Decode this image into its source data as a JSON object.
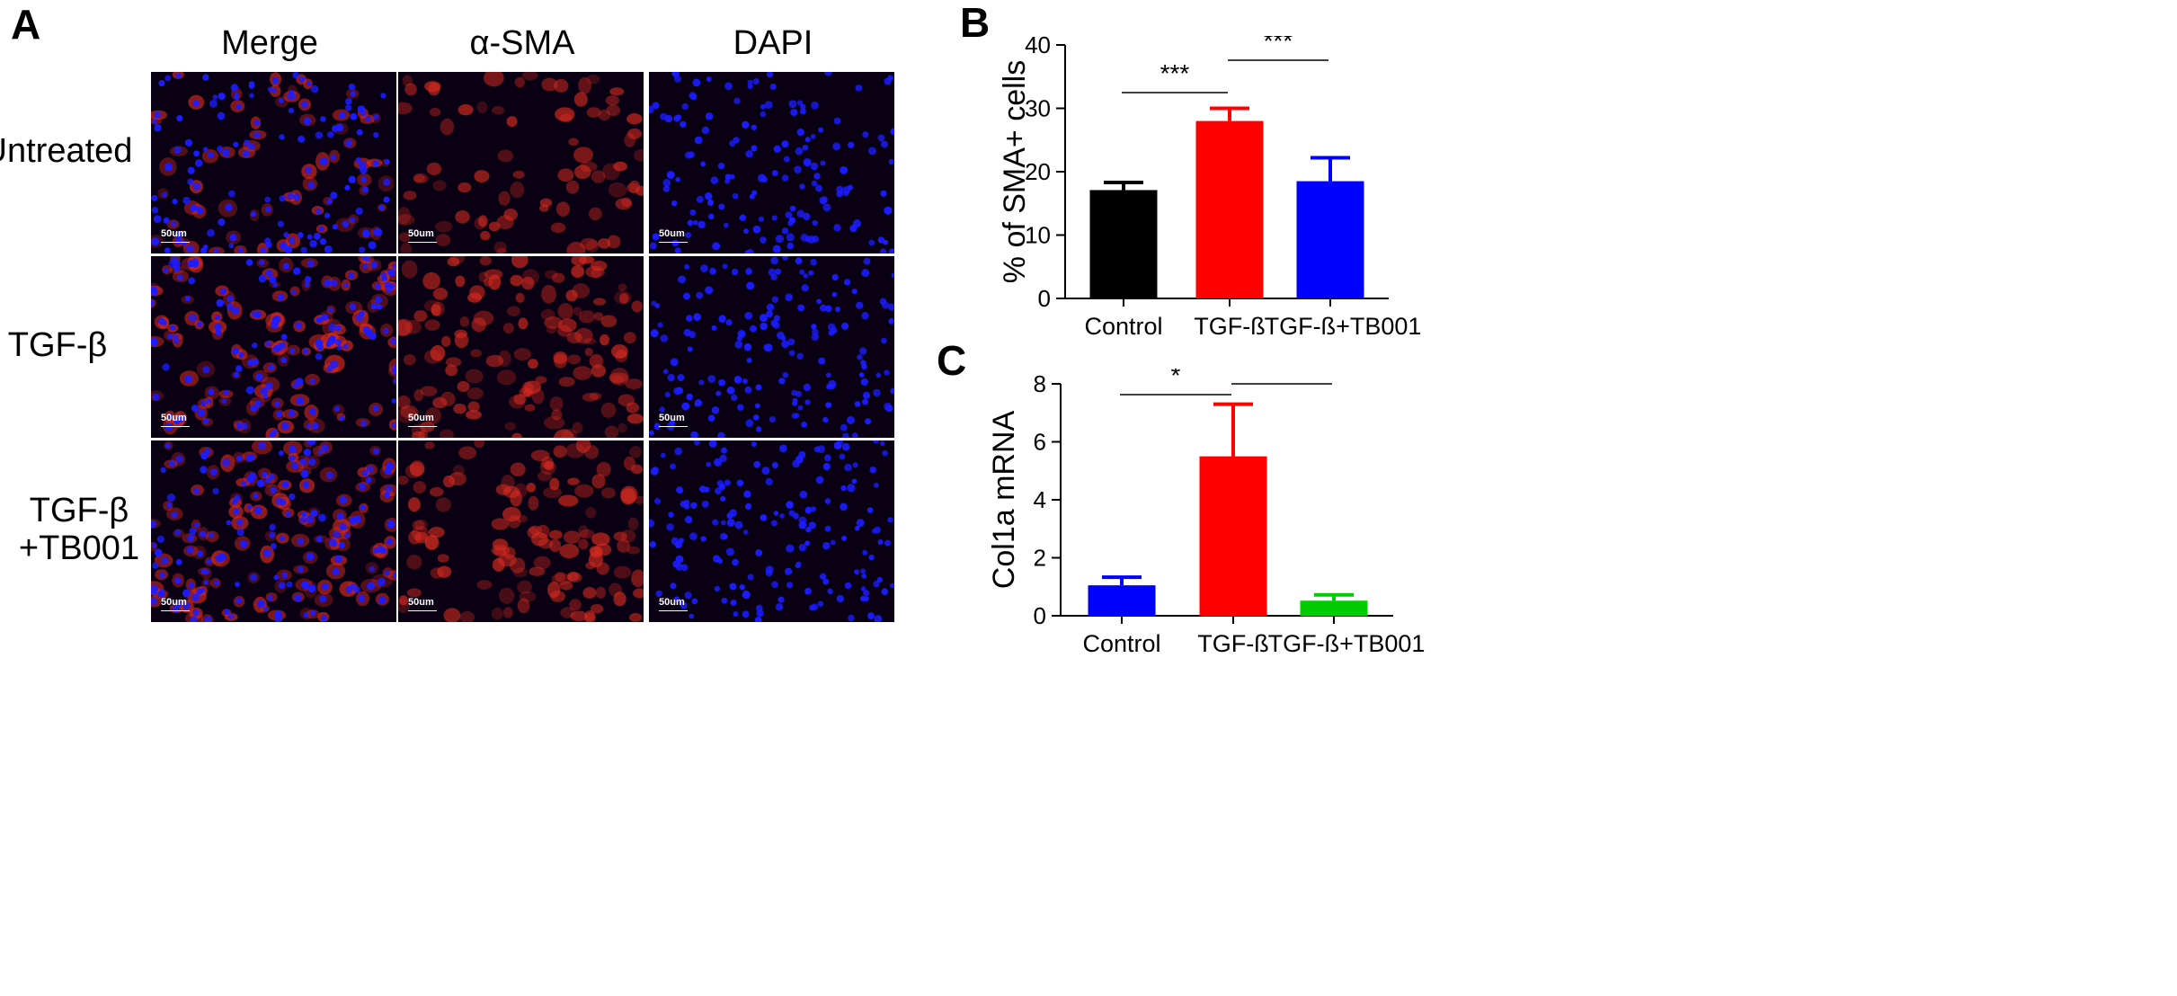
{
  "panels": {
    "a_label": "A",
    "b_label": "B",
    "c_label": "C"
  },
  "microscopy": {
    "columns": [
      "Merge",
      "α-SMA",
      "DAPI"
    ],
    "rows": [
      "Untreated",
      "TGF-β",
      "TGF-β\n+TB001"
    ],
    "scale_bar": "50um",
    "colors": {
      "alpha_sma": "#d42a1e",
      "dapi": "#1c1cff",
      "background": "#090014"
    }
  },
  "chart_data": [
    {
      "type": "bar",
      "panel": "B",
      "categories": [
        "Control",
        "TGF-ß",
        "TGF-ß+TB001"
      ],
      "values": [
        17.1,
        28.0,
        18.5
      ],
      "errors": [
        1.2,
        2.0,
        3.7
      ],
      "colors": [
        "#000000",
        "#ff0000",
        "#0000ff"
      ],
      "ylabel": "% of SMA+ cells",
      "ylim": [
        0,
        40
      ],
      "yticks": [
        0,
        10,
        20,
        30,
        40
      ],
      "significance": [
        {
          "from": 0,
          "to": 1,
          "label": "***"
        },
        {
          "from": 1,
          "to": 2,
          "label": "***"
        }
      ]
    },
    {
      "type": "bar",
      "panel": "C",
      "categories": [
        "Control",
        "TGF-ß",
        "TGF-ß+TB001"
      ],
      "values": [
        1.05,
        5.5,
        0.52
      ],
      "errors": [
        0.28,
        1.8,
        0.2
      ],
      "colors": [
        "#0000ff",
        "#ff0000",
        "#00cc00"
      ],
      "ylabel": "Col1a mRNA",
      "ylim": [
        0,
        8
      ],
      "yticks": [
        0,
        2,
        4,
        6,
        8
      ],
      "significance": [
        {
          "from": 0,
          "to": 1,
          "label": "*"
        },
        {
          "from": 1,
          "to": 2,
          "label": "**"
        }
      ]
    }
  ]
}
